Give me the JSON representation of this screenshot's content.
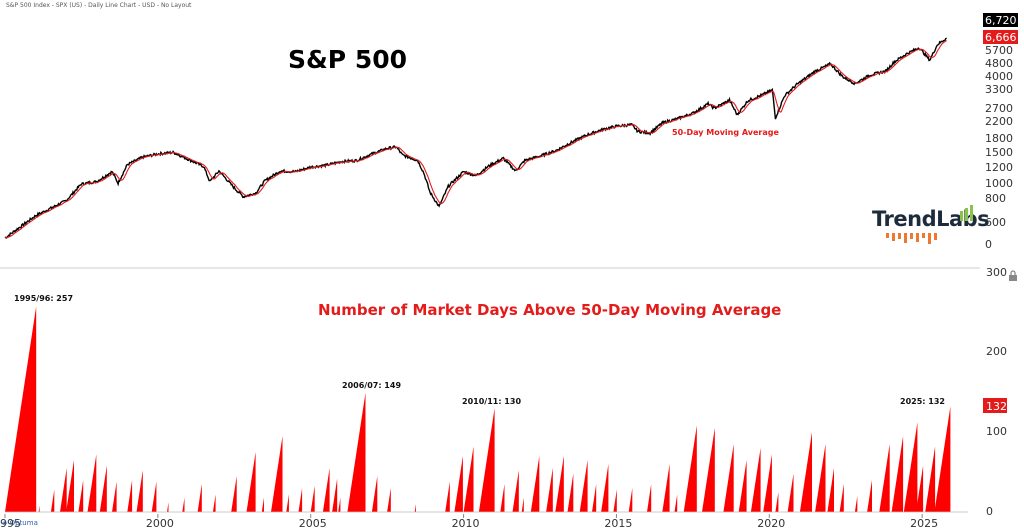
{
  "header": "S&P 500 Index - SPX (US) - Daily Line Chart - USD - No Layout",
  "logo": {
    "text": "TrendLabs"
  },
  "footer": {
    "brand": "Optuma"
  },
  "colors": {
    "price": "#000000",
    "ma": "#e31b1b",
    "bars": "#ff0000",
    "title_red": "#e31b1b"
  },
  "chart_data": [
    {
      "type": "line",
      "title": "S&P 500",
      "y_scale": "log",
      "y_ticks": [
        "5700",
        "4800",
        "4000",
        "3300",
        "2700",
        "2200",
        "1800",
        "1500",
        "1200",
        "1000",
        "800",
        "600",
        "0"
      ],
      "price_tags": {
        "last_price": "6,720",
        "ma_value": "6,666"
      },
      "series": [
        {
          "name": "",
          "values_ref": "points",
          "note": ""
        },
        {
          "name": "50-Day Moving Average",
          "values_ref": "points"
        }
      ],
      "points": [
        [
          1995.0,
          460
        ],
        [
          1996.0,
          620
        ],
        [
          1997.0,
          760
        ],
        [
          1997.5,
          950
        ],
        [
          1998.0,
          980
        ],
        [
          1998.5,
          1120
        ],
        [
          1998.7,
          960
        ],
        [
          1999.0,
          1230
        ],
        [
          1999.5,
          1360
        ],
        [
          2000.0,
          1420
        ],
        [
          2000.5,
          1450
        ],
        [
          2001.0,
          1320
        ],
        [
          2001.5,
          1200
        ],
        [
          2001.7,
          980
        ],
        [
          2002.0,
          1130
        ],
        [
          2002.5,
          900
        ],
        [
          2002.8,
          800
        ],
        [
          2003.2,
          840
        ],
        [
          2003.5,
          990
        ],
        [
          2004.0,
          1130
        ],
        [
          2004.5,
          1120
        ],
        [
          2005.0,
          1190
        ],
        [
          2005.5,
          1220
        ],
        [
          2006.0,
          1280
        ],
        [
          2006.5,
          1300
        ],
        [
          2007.0,
          1420
        ],
        [
          2007.5,
          1530
        ],
        [
          2007.8,
          1560
        ],
        [
          2008.0,
          1400
        ],
        [
          2008.5,
          1300
        ],
        [
          2008.7,
          1100
        ],
        [
          2008.9,
          850
        ],
        [
          2009.2,
          700
        ],
        [
          2009.5,
          920
        ],
        [
          2010.0,
          1120
        ],
        [
          2010.4,
          1060
        ],
        [
          2010.8,
          1200
        ],
        [
          2011.3,
          1340
        ],
        [
          2011.7,
          1130
        ],
        [
          2012.0,
          1300
        ],
        [
          2012.5,
          1380
        ],
        [
          2013.0,
          1480
        ],
        [
          2013.5,
          1650
        ],
        [
          2014.0,
          1820
        ],
        [
          2014.5,
          1960
        ],
        [
          2015.0,
          2060
        ],
        [
          2015.5,
          2100
        ],
        [
          2015.7,
          1920
        ],
        [
          2016.1,
          1880
        ],
        [
          2016.5,
          2150
        ],
        [
          2017.0,
          2280
        ],
        [
          2017.5,
          2450
        ],
        [
          2018.0,
          2780
        ],
        [
          2018.2,
          2620
        ],
        [
          2018.7,
          2920
        ],
        [
          2018.95,
          2400
        ],
        [
          2019.3,
          2900
        ],
        [
          2019.8,
          3150
        ],
        [
          2020.1,
          3350
        ],
        [
          2020.2,
          2300
        ],
        [
          2020.5,
          3100
        ],
        [
          2020.9,
          3600
        ],
        [
          2021.5,
          4300
        ],
        [
          2022.0,
          4750
        ],
        [
          2022.4,
          4000
        ],
        [
          2022.8,
          3650
        ],
        [
          2023.3,
          4100
        ],
        [
          2023.8,
          4300
        ],
        [
          2024.1,
          4900
        ],
        [
          2024.5,
          5450
        ],
        [
          2024.9,
          5900
        ],
        [
          2025.25,
          5000
        ],
        [
          2025.5,
          6150
        ],
        [
          2025.8,
          6720
        ]
      ]
    },
    {
      "type": "area",
      "title": "Number of Market Days Above 50-Day Moving Average",
      "y_ticks": [
        "300",
        "200",
        "100",
        "0"
      ],
      "x_ticks": [
        "1995",
        "2000",
        "2005",
        "2010",
        "2015",
        "2020",
        "2025"
      ],
      "ylim": [
        0,
        300
      ],
      "xlim": [
        1995,
        2026.5
      ],
      "last_value": "132",
      "annotations": [
        "1995/96: 257",
        "2006/07: 149",
        "2010/11: 130",
        "2025: 132"
      ],
      "streaks": [
        [
          1995.0,
          257
        ],
        [
          1996.1,
          8
        ],
        [
          1996.5,
          28
        ],
        [
          1996.8,
          55
        ],
        [
          1997.0,
          65
        ],
        [
          1997.4,
          40
        ],
        [
          1997.7,
          72
        ],
        [
          1998.1,
          58
        ],
        [
          1998.5,
          38
        ],
        [
          1999.0,
          40
        ],
        [
          1999.3,
          52
        ],
        [
          1999.8,
          38
        ],
        [
          2000.3,
          12
        ],
        [
          2000.8,
          18
        ],
        [
          2001.3,
          35
        ],
        [
          2001.8,
          22
        ],
        [
          2002.4,
          45
        ],
        [
          2002.9,
          75
        ],
        [
          2003.4,
          18
        ],
        [
          2003.7,
          95
        ],
        [
          2004.2,
          22
        ],
        [
          2004.6,
          30
        ],
        [
          2005.0,
          33
        ],
        [
          2005.4,
          55
        ],
        [
          2005.7,
          42
        ],
        [
          2005.9,
          18
        ],
        [
          2006.2,
          149
        ],
        [
          2007.0,
          45
        ],
        [
          2007.5,
          30
        ],
        [
          2008.4,
          10
        ],
        [
          2009.4,
          38
        ],
        [
          2009.7,
          70
        ],
        [
          2010.0,
          82
        ],
        [
          2010.5,
          130
        ],
        [
          2011.2,
          35
        ],
        [
          2011.6,
          52
        ],
        [
          2011.9,
          18
        ],
        [
          2012.2,
          70
        ],
        [
          2012.7,
          55
        ],
        [
          2013.0,
          70
        ],
        [
          2013.4,
          48
        ],
        [
          2013.8,
          65
        ],
        [
          2014.2,
          35
        ],
        [
          2014.5,
          60
        ],
        [
          2014.9,
          28
        ],
        [
          2015.4,
          30
        ],
        [
          2016.0,
          35
        ],
        [
          2016.5,
          60
        ],
        [
          2016.9,
          22
        ],
        [
          2017.2,
          108
        ],
        [
          2017.8,
          105
        ],
        [
          2018.5,
          85
        ],
        [
          2019.0,
          65
        ],
        [
          2019.4,
          80
        ],
        [
          2019.8,
          72
        ],
        [
          2020.2,
          25
        ],
        [
          2020.6,
          48
        ],
        [
          2021.0,
          100
        ],
        [
          2021.5,
          85
        ],
        [
          2021.9,
          55
        ],
        [
          2022.3,
          35
        ],
        [
          2022.8,
          20
        ],
        [
          2023.2,
          40
        ],
        [
          2023.6,
          85
        ],
        [
          2024.0,
          95
        ],
        [
          2024.4,
          112
        ],
        [
          2024.8,
          58
        ],
        [
          2025.1,
          82
        ],
        [
          2025.4,
          132
        ]
      ]
    }
  ]
}
